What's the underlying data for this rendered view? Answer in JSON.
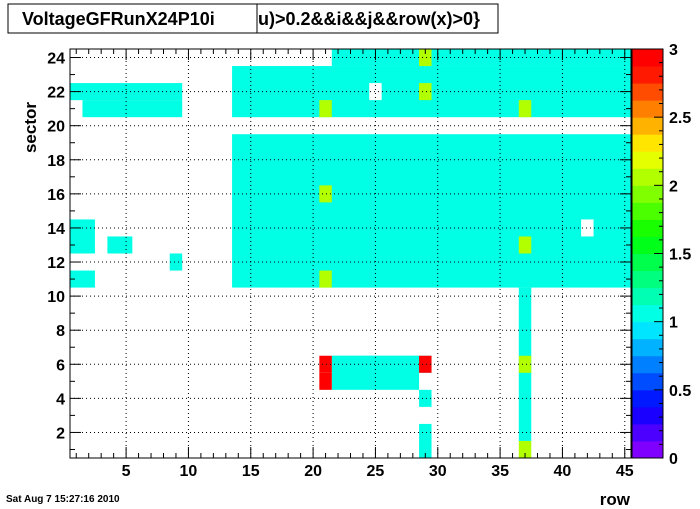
{
  "chart_data": {
    "type": "heatmap",
    "title_name": "VoltageGFRunX24P10i",
    "title_expr": "u)>0.2&&i&&j&&row(x)>0}",
    "xlabel": "row",
    "ylabel": "sector",
    "xlim": [
      0.5,
      45.5
    ],
    "ylim": [
      0.5,
      24.5
    ],
    "zlim": [
      0,
      3
    ],
    "x_ticks": [
      "5",
      "10",
      "15",
      "20",
      "25",
      "30",
      "35",
      "40",
      "45"
    ],
    "y_ticks": [
      "2",
      "4",
      "6",
      "8",
      "10",
      "12",
      "14",
      "16",
      "18",
      "20",
      "22",
      "24"
    ],
    "z_ticks": [
      "0",
      "0.5",
      "1",
      "1.5",
      "2",
      "2.5",
      "3"
    ],
    "grid": true,
    "palette_colors": [
      "#7f00ff",
      "#4c00ff",
      "#1900ff",
      "#0019ff",
      "#004cff",
      "#007fff",
      "#00b2ff",
      "#00e5ff",
      "#00ffe5",
      "#00ffb2",
      "#00ff7f",
      "#00ff4c",
      "#00ff19",
      "#19ff00",
      "#4cff00",
      "#7fff00",
      "#b2ff00",
      "#e5ff00",
      "#ffe500",
      "#ffb200",
      "#ff7f00",
      "#ff4c00",
      "#ff1900",
      "#ff0000"
    ],
    "cells_value_1": [
      {
        "x": [
          1,
          9
        ],
        "y": [
          22,
          22
        ]
      },
      {
        "x": [
          2,
          9
        ],
        "y": [
          21,
          21
        ]
      },
      {
        "x": [
          14,
          45
        ],
        "y": [
          21,
          23
        ]
      },
      {
        "x": [
          22,
          45
        ],
        "y": [
          24,
          24
        ]
      },
      {
        "x": [
          14,
          45
        ],
        "y": [
          11,
          19
        ]
      },
      {
        "x": [
          1,
          2
        ],
        "y": [
          13,
          14
        ]
      },
      {
        "x": [
          4,
          5
        ],
        "y": [
          13,
          13
        ]
      },
      {
        "x": [
          9,
          9
        ],
        "y": [
          12,
          12
        ]
      },
      {
        "x": [
          1,
          2
        ],
        "y": [
          11,
          11
        ]
      },
      {
        "x": [
          22,
          29
        ],
        "y": [
          6,
          6
        ]
      },
      {
        "x": [
          22,
          28
        ],
        "y": [
          5,
          6
        ]
      },
      {
        "x": [
          29,
          29
        ],
        "y": [
          4,
          4
        ]
      },
      {
        "x": [
          29,
          29
        ],
        "y": [
          1,
          2
        ]
      },
      {
        "x": [
          37,
          37
        ],
        "y": [
          2,
          10
        ]
      }
    ],
    "cells_empty": [
      {
        "x": 25,
        "y": 22
      },
      {
        "x": 42,
        "y": 14
      }
    ],
    "cells_value_2": [
      {
        "x": 29,
        "y": 24
      },
      {
        "x": 29,
        "y": 22
      },
      {
        "x": 21,
        "y": 21
      },
      {
        "x": 37,
        "y": 21
      },
      {
        "x": 21,
        "y": 16
      },
      {
        "x": 37,
        "y": 13
      },
      {
        "x": 21,
        "y": 11
      },
      {
        "x": 37,
        "y": 6
      },
      {
        "x": 37,
        "y": 1
      }
    ],
    "cells_value_3": [
      {
        "x": 21,
        "y": 5
      },
      {
        "x": 21,
        "y": 6
      },
      {
        "x": 29,
        "y": 6
      }
    ]
  },
  "footer": {
    "timestamp": "Sat Aug  7 15:27:16 2010"
  }
}
